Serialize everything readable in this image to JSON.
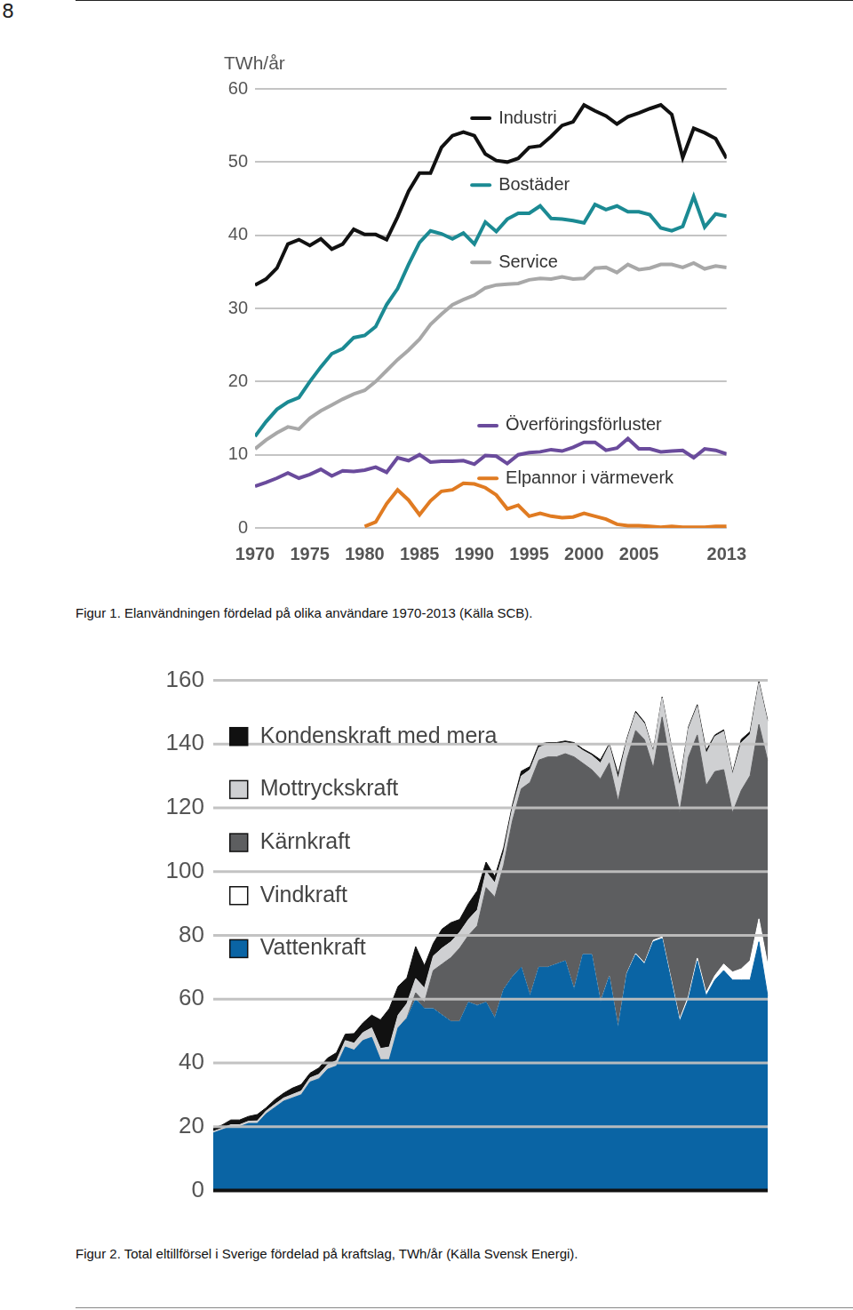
{
  "page_number": "8",
  "chart_data": [
    {
      "type": "line",
      "title": "Figur 1. Elanvändningen fördelad på olika användare 1970-2013 (Källa SCB).",
      "y_label": "TWh/år",
      "x": [
        1970,
        1971,
        1972,
        1973,
        1974,
        1975,
        1976,
        1977,
        1978,
        1979,
        1980,
        1981,
        1982,
        1983,
        1984,
        1985,
        1986,
        1987,
        1988,
        1989,
        1990,
        1991,
        1992,
        1993,
        1994,
        1995,
        1996,
        1997,
        1998,
        1999,
        2000,
        2001,
        2002,
        2003,
        2004,
        2005,
        2006,
        2007,
        2008,
        2009,
        2010,
        2011,
        2012,
        2013
      ],
      "series": [
        {
          "name": "Industri",
          "color": "#111111",
          "values": [
            33.2,
            34,
            35.5,
            38.8,
            39.4,
            38.6,
            39.5,
            38.1,
            38.8,
            40.8,
            40.1,
            40.1,
            39.4,
            42.5,
            46,
            48.5,
            48.5,
            52,
            53.6,
            54.1,
            53.6,
            51.1,
            50.2,
            50,
            50.5,
            52,
            52.2,
            53.5,
            55,
            55.5,
            57.8,
            57,
            56.3,
            55.2,
            56.2,
            56.7,
            57.3,
            57.8,
            56.5,
            50.6,
            54.6,
            54,
            53.2,
            50.5
          ]
        },
        {
          "name": "Bostäder",
          "color": "#1b8a93",
          "values": [
            12.5,
            14.5,
            16.2,
            17.2,
            17.8,
            20,
            22,
            23.8,
            24.5,
            26,
            26.3,
            27.5,
            30.5,
            32.7,
            36,
            39,
            40.6,
            40.2,
            39.5,
            40.3,
            38.8,
            41.8,
            40.5,
            42.2,
            43,
            43,
            44,
            42.3,
            42.2,
            42,
            41.7,
            44.2,
            43.5,
            44,
            43.2,
            43.2,
            42.8,
            41,
            40.6,
            41.2,
            45.3,
            41.1,
            42.9,
            42.6
          ]
        },
        {
          "name": "Service",
          "color": "#a8a8a8",
          "values": [
            10.8,
            12,
            13,
            13.8,
            13.5,
            15,
            16,
            16.8,
            17.6,
            18.3,
            18.8,
            20,
            21.5,
            23,
            24.3,
            25.8,
            27.8,
            29.2,
            30.5,
            31.2,
            31.8,
            32.8,
            33.2,
            33.3,
            33.4,
            33.9,
            34.1,
            34,
            34.3,
            34,
            34.1,
            35.5,
            35.6,
            34.9,
            36,
            35.3,
            35.5,
            36,
            36,
            35.6,
            36.2,
            35.4,
            35.8,
            35.6
          ]
        },
        {
          "name": "Överföringsförluster",
          "color": "#6a4b9c",
          "values": [
            5.7,
            6.2,
            6.8,
            7.5,
            6.8,
            7.3,
            8,
            7.1,
            7.8,
            7.7,
            7.9,
            8.3,
            7.6,
            9.6,
            9.2,
            10,
            9,
            9.1,
            9.1,
            9.2,
            8.7,
            9.9,
            9.8,
            8.8,
            10,
            10.3,
            10.4,
            10.7,
            10.5,
            11,
            11.7,
            11.7,
            10.6,
            10.9,
            12.2,
            10.8,
            10.8,
            10.4,
            10.5,
            10.6,
            9.6,
            10.8,
            10.6,
            10.1
          ]
        },
        {
          "name": "Elpannor i värmeverk",
          "color": "#e07b22",
          "values": [
            null,
            null,
            null,
            null,
            null,
            null,
            null,
            null,
            null,
            null,
            0.2,
            0.8,
            3.3,
            5.2,
            3.8,
            1.8,
            3.7,
            5,
            5.2,
            6.1,
            6,
            5.5,
            4.5,
            2.6,
            3.1,
            1.6,
            2,
            1.6,
            1.4,
            1.5,
            2,
            1.6,
            1.2,
            0.5,
            0.3,
            0.3,
            0.2,
            0.1,
            0.2,
            0.1,
            0.1,
            0.1,
            0.2,
            0.2
          ]
        }
      ],
      "xlim": [
        1970,
        2013
      ],
      "xticks": [
        1970,
        1975,
        1980,
        1985,
        1990,
        1995,
        2000,
        2005,
        2013
      ],
      "ylim": [
        0,
        60
      ],
      "yticks": [
        0,
        10,
        20,
        30,
        40,
        50,
        60
      ],
      "grid": true,
      "legend": "inline"
    },
    {
      "type": "area",
      "title": "Figur 2. Total eltillförsel i Sverige fördelad på kraftslag, TWh/år (Källa Svensk Energi).",
      "stacked": true,
      "categories": [
        null,
        null,
        null,
        null,
        null,
        null,
        null,
        null,
        null,
        null,
        null,
        null,
        null,
        null,
        null,
        null,
        null,
        null,
        null,
        null,
        null,
        null,
        null,
        null,
        null,
        null,
        null,
        null,
        null,
        null,
        null,
        null,
        null,
        null,
        null,
        null,
        null,
        null,
        null,
        null,
        null,
        null,
        null,
        null,
        null,
        null,
        null,
        null,
        null,
        null,
        null,
        null,
        null,
        null,
        null,
        null,
        null,
        null,
        null,
        null,
        null,
        null,
        null,
        null
      ],
      "series": [
        {
          "name": "Vattenkraft",
          "color": "#0a64a4",
          "values": [
            18,
            19,
            20,
            20,
            21,
            21,
            24,
            26,
            28,
            29,
            30,
            34,
            35,
            38,
            39,
            45,
            44,
            47,
            48,
            41,
            41,
            51,
            54,
            60,
            57,
            57,
            55,
            53,
            53,
            59,
            58,
            59,
            54,
            63,
            67,
            70,
            61,
            70,
            70,
            71,
            72,
            63,
            74,
            74,
            59,
            67,
            51,
            68,
            74,
            71,
            78,
            79,
            66,
            53,
            60,
            72,
            61,
            66,
            69,
            66,
            66,
            66,
            78,
            61
          ]
        },
        {
          "name": "Vindkraft",
          "color": "#ffffff",
          "values": [
            0,
            0,
            0,
            0,
            0,
            0,
            0,
            0,
            0,
            0,
            0,
            0,
            0,
            0,
            0,
            0,
            0,
            0,
            0,
            0,
            0,
            0,
            0,
            0,
            0,
            0,
            0,
            0,
            0,
            0,
            0,
            0,
            0,
            0,
            0,
            0,
            0,
            0,
            0,
            0,
            0,
            0,
            0,
            0,
            0.1,
            0.1,
            0.1,
            0.2,
            0.3,
            0.4,
            0.5,
            0.5,
            0.6,
            0.7,
            0.9,
            0.9,
            1,
            1.4,
            2,
            2.5,
            3.5,
            6.1,
            7.2,
            9.8
          ]
        },
        {
          "name": "Kärnkraft",
          "color": "#5d5e60",
          "values": [
            0,
            0,
            0,
            0,
            0,
            0,
            0,
            0,
            0,
            0,
            0,
            0,
            0,
            0,
            0,
            0,
            0,
            0,
            0,
            0,
            0,
            0,
            0.1,
            2,
            2,
            12,
            16,
            20,
            23,
            21,
            25,
            36,
            38,
            39,
            49,
            56,
            67,
            65,
            66,
            65,
            65,
            73,
            60,
            58,
            70,
            67,
            71,
            67,
            70,
            70,
            54,
            69,
            66,
            65,
            75,
            70,
            65,
            64,
            61,
            50,
            56,
            58,
            61,
            64
          ]
        },
        {
          "name": "Mottryckskraft",
          "color": "#cfd0d2",
          "values": [
            0.5,
            0.5,
            0.6,
            0.6,
            0.7,
            0.8,
            0.9,
            1,
            1,
            1.1,
            1.2,
            1.3,
            1.4,
            1.5,
            1.7,
            2,
            2.2,
            2.5,
            3,
            3.5,
            4,
            4,
            4.5,
            4.5,
            4.5,
            4.5,
            5,
            5,
            5,
            5,
            5,
            5,
            4.5,
            4,
            4,
            4,
            4,
            4,
            4,
            4,
            3.5,
            4,
            4,
            4.5,
            5,
            5.5,
            7,
            6,
            5.5,
            5,
            5,
            6,
            7,
            8,
            9,
            9,
            10,
            11,
            12,
            12,
            15,
            13,
            13,
            12
          ]
        },
        {
          "name": "Kondenskraft med mera",
          "color": "#111111",
          "values": [
            1,
            1,
            1.5,
            1.5,
            1.5,
            2,
            1,
            1.5,
            1.5,
            2,
            2,
            1.5,
            2,
            2,
            2.5,
            2,
            3,
            3,
            4,
            9,
            12,
            9,
            8,
            10,
            7,
            4,
            6,
            6,
            4,
            5,
            6,
            3,
            2,
            1.5,
            1,
            1.5,
            1,
            1,
            0.5,
            0.5,
            0.5,
            0.5,
            0.5,
            0.5,
            1,
            0.5,
            1.5,
            0.5,
            0.5,
            0.5,
            0.3,
            0.3,
            0.5,
            1,
            0.5,
            0.5,
            1,
            0.5,
            0.5,
            0.5,
            1,
            0.8,
            0.5,
            0.5
          ]
        }
      ],
      "ylim": [
        0,
        160
      ],
      "yticks": [
        0,
        20,
        40,
        60,
        80,
        100,
        120,
        140,
        160
      ],
      "grid": true,
      "tick_labels": "y",
      "legend": "upper left"
    }
  ]
}
